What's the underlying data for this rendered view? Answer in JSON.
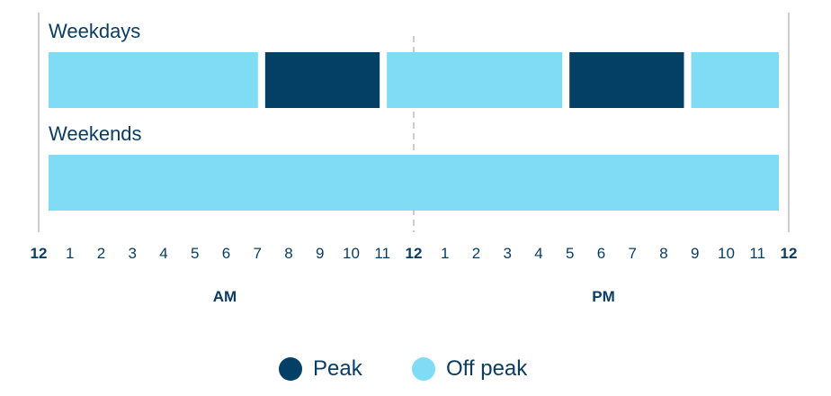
{
  "colors": {
    "peak": "#043f66",
    "off_peak": "#80dcf4",
    "text": "#0b3c61",
    "axis_line": "#cccccc"
  },
  "chart_data": {
    "type": "bar",
    "x_range": [
      0,
      24
    ],
    "rows": [
      {
        "label": "Weekdays",
        "segments": [
          {
            "start": 0,
            "end": 7,
            "category": "Off peak"
          },
          {
            "start": 7,
            "end": 11,
            "category": "Peak"
          },
          {
            "start": 11,
            "end": 17,
            "category": "Off peak"
          },
          {
            "start": 17,
            "end": 21,
            "category": "Peak"
          },
          {
            "start": 21,
            "end": 24,
            "category": "Off peak"
          }
        ]
      },
      {
        "label": "Weekends",
        "segments": [
          {
            "start": 0,
            "end": 24,
            "category": "Off peak"
          }
        ]
      }
    ],
    "tick_labels": [
      "12",
      "1",
      "2",
      "3",
      "4",
      "5",
      "6",
      "7",
      "8",
      "9",
      "10",
      "11",
      "12",
      "1",
      "2",
      "3",
      "4",
      "5",
      "6",
      "7",
      "8",
      "9",
      "10",
      "11",
      "12"
    ],
    "period_labels": [
      "AM",
      "PM"
    ],
    "legend": [
      {
        "label": "Peak",
        "category": "Peak"
      },
      {
        "label": "Off peak",
        "category": "Off peak"
      }
    ]
  }
}
